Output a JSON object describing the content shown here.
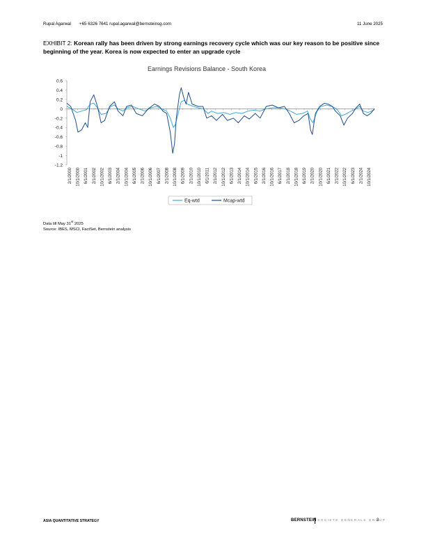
{
  "header": {
    "author": "Rupal Agarwal",
    "contact": "+65 6326 7641  rupal.agarwal@bernsteinsg.com",
    "date": "11 June 2025"
  },
  "exhibit": {
    "number": "EXHIBIT 2:",
    "text": "Korean rally has been driven by strong earnings recovery cycle which was our key reason to be positive since beginning of the year. Korea is now expected to enter an upgrade cycle"
  },
  "chart_data": {
    "type": "line",
    "title": "Earnings Revisions Balance - South Korea",
    "xlabel": "",
    "ylabel": "",
    "ylim": [
      -1.2,
      0.6
    ],
    "yticks": [
      "0.6",
      "0.4",
      "0.2",
      "0",
      "-0.2",
      "-0.4",
      "-0.6",
      "-0.8",
      "-1",
      "-1.2"
    ],
    "xticks": [
      "2/1/2000",
      "10/1/2000",
      "6/1/2001",
      "2/1/2002",
      "10/1/2002",
      "6/1/2003",
      "2/1/2004",
      "10/1/2004",
      "6/1/2005",
      "2/1/2006",
      "10/1/2006",
      "6/1/2007",
      "2/1/2008",
      "10/1/2008",
      "6/1/2009",
      "2/1/2010",
      "10/1/2010",
      "6/1/2011",
      "2/1/2012",
      "10/1/2012",
      "6/1/2013",
      "2/1/2014",
      "10/1/2014",
      "6/1/2015",
      "2/1/2016",
      "10/1/2016",
      "6/1/2017",
      "2/1/2018",
      "10/1/2018",
      "6/1/2019",
      "2/1/2020",
      "10/1/2020",
      "6/1/2021",
      "2/1/2022",
      "10/1/2022",
      "6/1/2023",
      "2/1/2024",
      "10/1/2024"
    ],
    "x_start": 2000.08,
    "x_end": 2025.42,
    "legend": "bottom",
    "grid": false,
    "colors": {
      "Eq-wtd": "#3fa9dc",
      "Mcap-wtd": "#1f4e8c"
    },
    "series": [
      {
        "name": "Eq-wtd",
        "points": [
          [
            2000.08,
            0.05
          ],
          [
            2000.5,
            0.0
          ],
          [
            2000.9,
            -0.08
          ],
          [
            2001.3,
            -0.05
          ],
          [
            2001.7,
            -0.02
          ],
          [
            2002.0,
            0.1
          ],
          [
            2002.3,
            0.12
          ],
          [
            2002.6,
            0.02
          ],
          [
            2002.9,
            -0.12
          ],
          [
            2003.3,
            -0.1
          ],
          [
            2003.7,
            0.05
          ],
          [
            2004.0,
            0.08
          ],
          [
            2004.3,
            0.0
          ],
          [
            2004.7,
            -0.05
          ],
          [
            2005.0,
            0.02
          ],
          [
            2005.5,
            0.05
          ],
          [
            2006.0,
            0.0
          ],
          [
            2006.5,
            -0.05
          ],
          [
            2007.0,
            0.02
          ],
          [
            2007.5,
            0.05
          ],
          [
            2007.9,
            0.0
          ],
          [
            2008.3,
            -0.05
          ],
          [
            2008.6,
            -0.2
          ],
          [
            2008.85,
            -0.4
          ],
          [
            2009.0,
            -0.35
          ],
          [
            2009.25,
            -0.1
          ],
          [
            2009.5,
            0.15
          ],
          [
            2009.75,
            0.18
          ],
          [
            2010.0,
            0.1
          ],
          [
            2010.5,
            0.05
          ],
          [
            2010.9,
            0.02
          ],
          [
            2011.3,
            0.0
          ],
          [
            2011.7,
            -0.1
          ],
          [
            2012.0,
            -0.05
          ],
          [
            2012.5,
            -0.1
          ],
          [
            2013.0,
            -0.08
          ],
          [
            2013.5,
            -0.12
          ],
          [
            2014.0,
            -0.08
          ],
          [
            2014.5,
            -0.1
          ],
          [
            2015.0,
            -0.05
          ],
          [
            2015.5,
            -0.03
          ],
          [
            2016.0,
            -0.05
          ],
          [
            2016.5,
            0.0
          ],
          [
            2017.0,
            0.02
          ],
          [
            2017.5,
            0.02
          ],
          [
            2018.0,
            0.0
          ],
          [
            2018.5,
            -0.05
          ],
          [
            2019.0,
            -0.12
          ],
          [
            2019.5,
            -0.1
          ],
          [
            2019.9,
            -0.05
          ],
          [
            2020.1,
            -0.2
          ],
          [
            2020.35,
            -0.3
          ],
          [
            2020.7,
            -0.05
          ],
          [
            2021.0,
            0.05
          ],
          [
            2021.5,
            0.08
          ],
          [
            2021.9,
            0.05
          ],
          [
            2022.3,
            0.0
          ],
          [
            2022.7,
            -0.15
          ],
          [
            2023.0,
            -0.12
          ],
          [
            2023.5,
            -0.05
          ],
          [
            2023.9,
            0.0
          ],
          [
            2024.2,
            0.05
          ],
          [
            2024.5,
            -0.05
          ],
          [
            2024.9,
            -0.08
          ],
          [
            2025.42,
            -0.02
          ]
        ]
      },
      {
        "name": "Mcap-wtd",
        "points": [
          [
            2000.08,
            0.12
          ],
          [
            2000.4,
            0.05
          ],
          [
            2000.8,
            -0.25
          ],
          [
            2001.0,
            -0.5
          ],
          [
            2001.3,
            -0.45
          ],
          [
            2001.6,
            -0.3
          ],
          [
            2001.8,
            -0.4
          ],
          [
            2002.0,
            0.15
          ],
          [
            2002.3,
            0.3
          ],
          [
            2002.6,
            0.05
          ],
          [
            2002.9,
            -0.3
          ],
          [
            2003.2,
            -0.25
          ],
          [
            2003.6,
            0.05
          ],
          [
            2004.0,
            0.15
          ],
          [
            2004.3,
            -0.05
          ],
          [
            2004.7,
            -0.15
          ],
          [
            2005.0,
            0.05
          ],
          [
            2005.4,
            0.08
          ],
          [
            2005.8,
            -0.1
          ],
          [
            2006.3,
            -0.15
          ],
          [
            2006.8,
            0.0
          ],
          [
            2007.3,
            0.1
          ],
          [
            2007.7,
            0.05
          ],
          [
            2008.0,
            -0.05
          ],
          [
            2008.3,
            -0.1
          ],
          [
            2008.6,
            -0.5
          ],
          [
            2008.8,
            -0.95
          ],
          [
            2008.95,
            -0.75
          ],
          [
            2009.1,
            -0.2
          ],
          [
            2009.35,
            0.3
          ],
          [
            2009.5,
            0.45
          ],
          [
            2009.7,
            0.25
          ],
          [
            2009.9,
            0.1
          ],
          [
            2010.1,
            0.35
          ],
          [
            2010.4,
            0.1
          ],
          [
            2010.9,
            0.05
          ],
          [
            2011.3,
            0.05
          ],
          [
            2011.6,
            -0.2
          ],
          [
            2012.0,
            -0.15
          ],
          [
            2012.4,
            -0.25
          ],
          [
            2012.9,
            -0.12
          ],
          [
            2013.3,
            -0.25
          ],
          [
            2013.8,
            -0.2
          ],
          [
            2014.2,
            -0.3
          ],
          [
            2014.7,
            -0.15
          ],
          [
            2015.1,
            -0.22
          ],
          [
            2015.6,
            -0.1
          ],
          [
            2016.0,
            -0.2
          ],
          [
            2016.5,
            0.05
          ],
          [
            2017.0,
            0.08
          ],
          [
            2017.5,
            0.02
          ],
          [
            2018.0,
            0.05
          ],
          [
            2018.4,
            -0.1
          ],
          [
            2018.8,
            -0.3
          ],
          [
            2019.2,
            -0.25
          ],
          [
            2019.6,
            -0.15
          ],
          [
            2019.95,
            -0.1
          ],
          [
            2020.15,
            -0.45
          ],
          [
            2020.3,
            -0.55
          ],
          [
            2020.55,
            -0.1
          ],
          [
            2020.9,
            0.05
          ],
          [
            2021.3,
            0.12
          ],
          [
            2021.6,
            0.1
          ],
          [
            2021.95,
            0.05
          ],
          [
            2022.2,
            -0.05
          ],
          [
            2022.6,
            -0.15
          ],
          [
            2022.9,
            -0.35
          ],
          [
            2023.2,
            -0.2
          ],
          [
            2023.6,
            -0.1
          ],
          [
            2023.9,
            0.02
          ],
          [
            2024.2,
            0.1
          ],
          [
            2024.5,
            -0.1
          ],
          [
            2024.8,
            -0.15
          ],
          [
            2025.1,
            -0.1
          ],
          [
            2025.42,
            0.0
          ]
        ]
      }
    ]
  },
  "notes": {
    "data_till_prefix": "Data till May 31",
    "data_till_sup": "st",
    "data_till_suffix": " 2025",
    "source": "Source: IBES, MSCI, FactSet, Bernstein analysis"
  },
  "footer": {
    "left": "ASIA QUANTITATIVE STRATEGY",
    "brand": "BERNSTEIN",
    "tagline": "SOCIETE GENERALE GROUP",
    "page": "3"
  }
}
